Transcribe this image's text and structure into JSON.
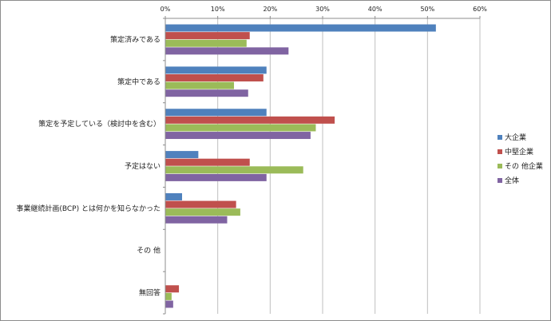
{
  "chart_data": {
    "type": "bar",
    "orientation": "horizontal",
    "title": "",
    "xlabel": "",
    "ylabel": "",
    "xlim": [
      0,
      60
    ],
    "x_tick_labels": [
      "0%",
      "10%",
      "20%",
      "30%",
      "40%",
      "50%",
      "60%"
    ],
    "x_axis_position": "top",
    "grid": true,
    "legend_position": "right",
    "categories": [
      "策定済みである",
      "策定中である",
      "策定を予定している（検討中を含む）",
      "予定はない",
      "事業継続計画(BCP) とは何かを知らなかった",
      "その 他",
      "無回答"
    ],
    "series": [
      {
        "name": "大企業",
        "color": "#4f81bd",
        "values": [
          51.6,
          19.3,
          19.3,
          6.3,
          3.2,
          0.0,
          0.0
        ]
      },
      {
        "name": "中堅企業",
        "color": "#c0504d",
        "values": [
          16.1,
          18.7,
          32.3,
          16.1,
          13.5,
          0.0,
          2.6
        ]
      },
      {
        "name": "その 他企業",
        "color": "#9bbb59",
        "values": [
          15.5,
          13.1,
          28.7,
          26.3,
          14.3,
          0.0,
          1.2
        ]
      },
      {
        "name": "全体",
        "color": "#8064a2",
        "values": [
          23.5,
          15.8,
          27.7,
          19.3,
          11.8,
          0.0,
          1.5
        ]
      }
    ]
  }
}
